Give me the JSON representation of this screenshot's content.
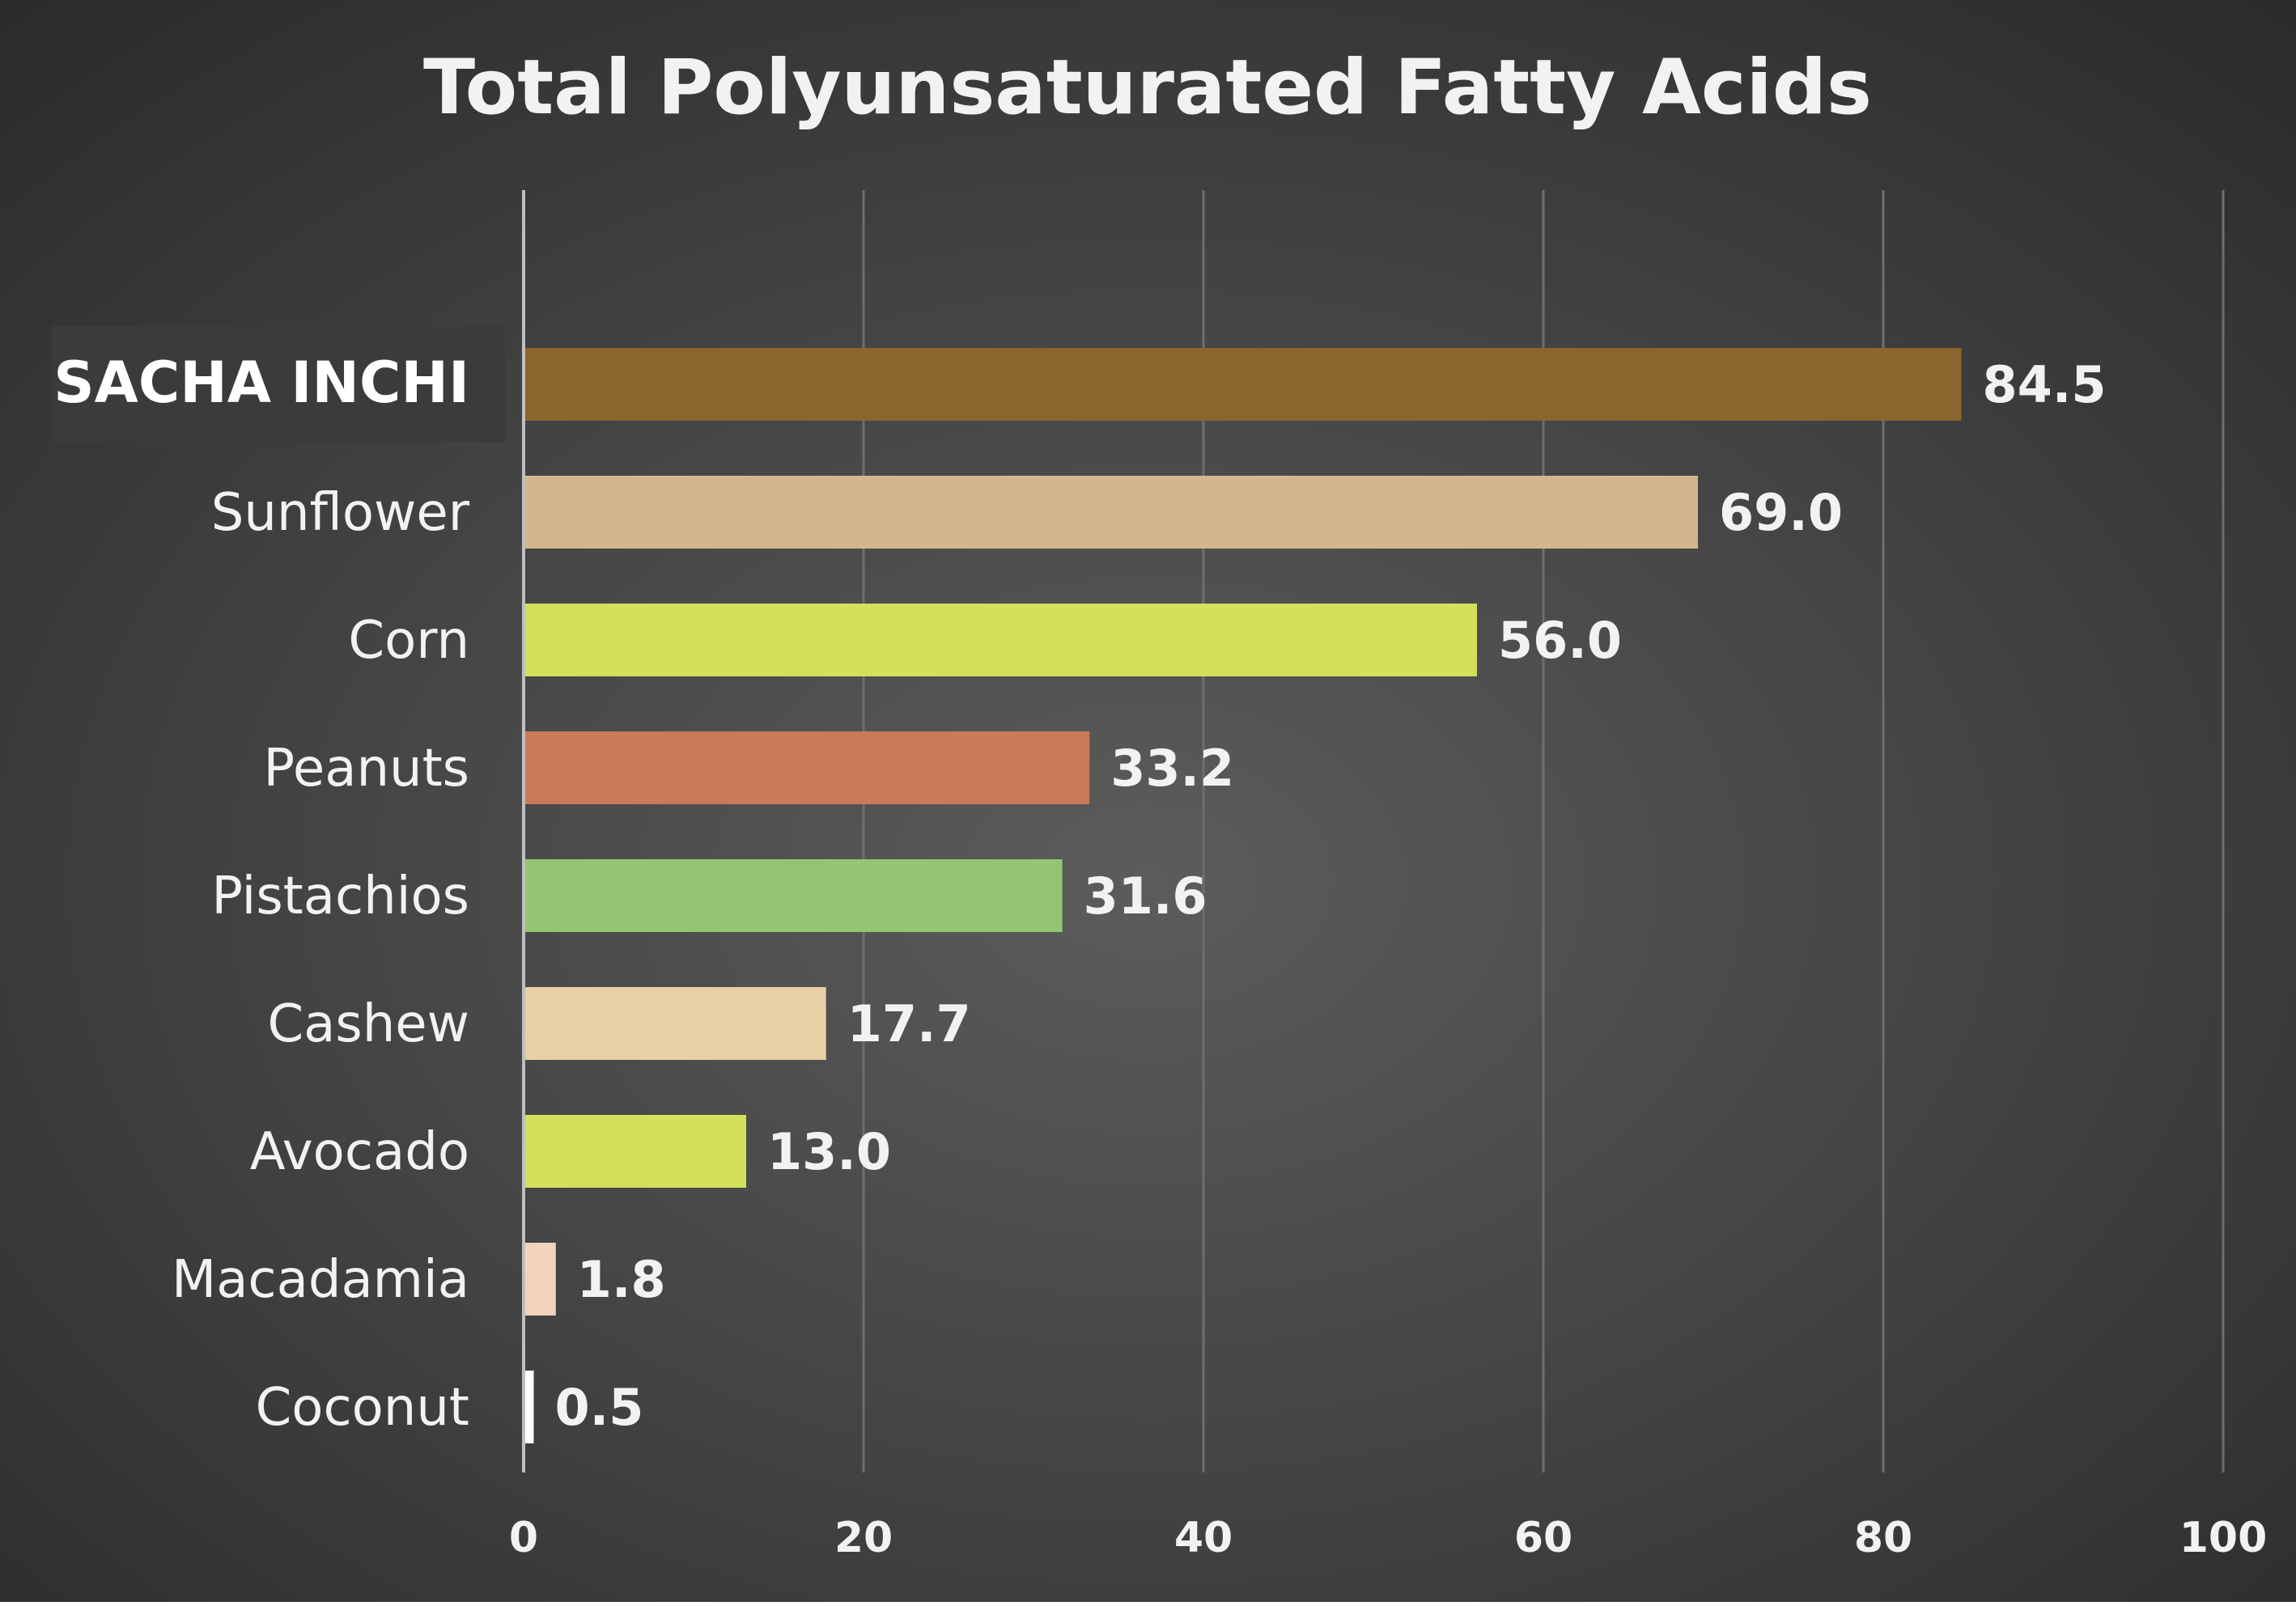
{
  "chart_data": {
    "type": "bar",
    "orientation": "horizontal",
    "title": "Total Polyunsaturated Fatty Acids",
    "xlabel": "",
    "ylabel": "",
    "xlim": [
      0,
      100
    ],
    "x_ticks": [
      0,
      20,
      40,
      60,
      80,
      100
    ],
    "categories": [
      "SACHA INCHI",
      "Sunflower",
      "Corn",
      "Peanuts",
      "Pistachios",
      "Cashew",
      "Avocado",
      "Macadamia",
      "Coconut"
    ],
    "values": [
      84.5,
      69.0,
      56.0,
      33.2,
      31.6,
      17.7,
      13.0,
      1.8,
      0.5
    ],
    "value_labels": [
      "84.5",
      "69.0",
      "56.0",
      "33.2",
      "31.6",
      "17.7",
      "13.0",
      "1.8",
      "0.5"
    ],
    "bar_colors": [
      "#8a652d",
      "#d4b68e",
      "#d3e05b",
      "#c97a5b",
      "#93c572",
      "#e8cfa6",
      "#d3e05b",
      "#f2d3bb",
      "#ffffff"
    ],
    "highlighted_category": "SACHA INCHI",
    "grid": "vertical",
    "legend": "none"
  },
  "colors": {
    "background_center": "#5c5c5c",
    "background_edge": "#2a2a2a",
    "highlight_box": "#3b3b3b",
    "text": "#f2f2f2",
    "gridline": "#6e6e6e",
    "axis_line": "#bfbfbf"
  }
}
